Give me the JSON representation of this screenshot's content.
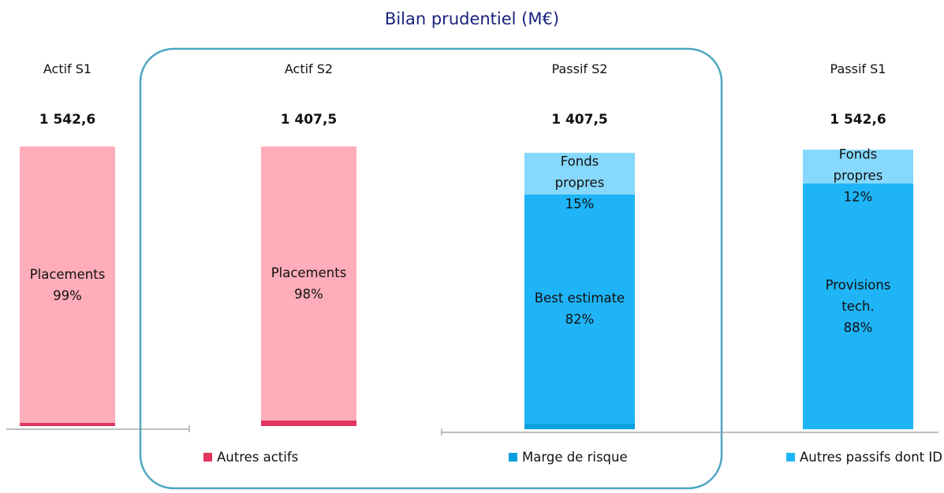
{
  "chart_data": {
    "type": "bar",
    "stacked": true,
    "title": "Bilan prudentiel (M€)",
    "categories": [
      "Actif  S1",
      "Actif  S2",
      "Passif S2",
      "Passif S1"
    ],
    "totals": [
      1542.6,
      1407.5,
      1407.5,
      1542.6
    ],
    "total_labels": [
      "1 542,6",
      "1 407,5",
      "1 407,5",
      "1 542,6"
    ],
    "ylim": [
      0,
      100
    ],
    "series": [
      {
        "name": "Autres actifs",
        "color": "#e2345e",
        "legend": true,
        "values": [
          1,
          2,
          null,
          null
        ],
        "value_labels": [
          "1%",
          "2%",
          null,
          null
        ]
      },
      {
        "name": "Placements",
        "color": "#ffadba",
        "legend": false,
        "values": [
          99,
          98,
          null,
          null
        ],
        "value_labels": [
          "99%",
          "98%",
          null,
          null
        ]
      },
      {
        "name": "Marge de risque",
        "color": "#0aa0e0",
        "legend": true,
        "values": [
          null,
          null,
          2,
          null
        ],
        "value_labels": [
          null,
          null,
          "2%",
          null
        ]
      },
      {
        "name": "Autres passifs dont ID",
        "color": "#1eb4f6",
        "legend": true,
        "values": [
          null,
          null,
          null,
          null
        ]
      },
      {
        "name": "Best estimate",
        "color": "#1eb4f6",
        "legend": false,
        "values": [
          null,
          null,
          82,
          null
        ],
        "value_labels": [
          null,
          null,
          "82%",
          null
        ]
      },
      {
        "name": "Provisions\ntech.",
        "color": "#1eb4f6",
        "legend": false,
        "values": [
          null,
          null,
          null,
          88
        ],
        "value_labels": [
          null,
          null,
          null,
          "88%"
        ]
      },
      {
        "name": "Fonds\npropres",
        "color": "#86d8fc",
        "legend": false,
        "values": [
          null,
          null,
          15,
          12
        ],
        "value_labels": [
          null,
          null,
          "15%",
          "12%"
        ]
      }
    ]
  }
}
